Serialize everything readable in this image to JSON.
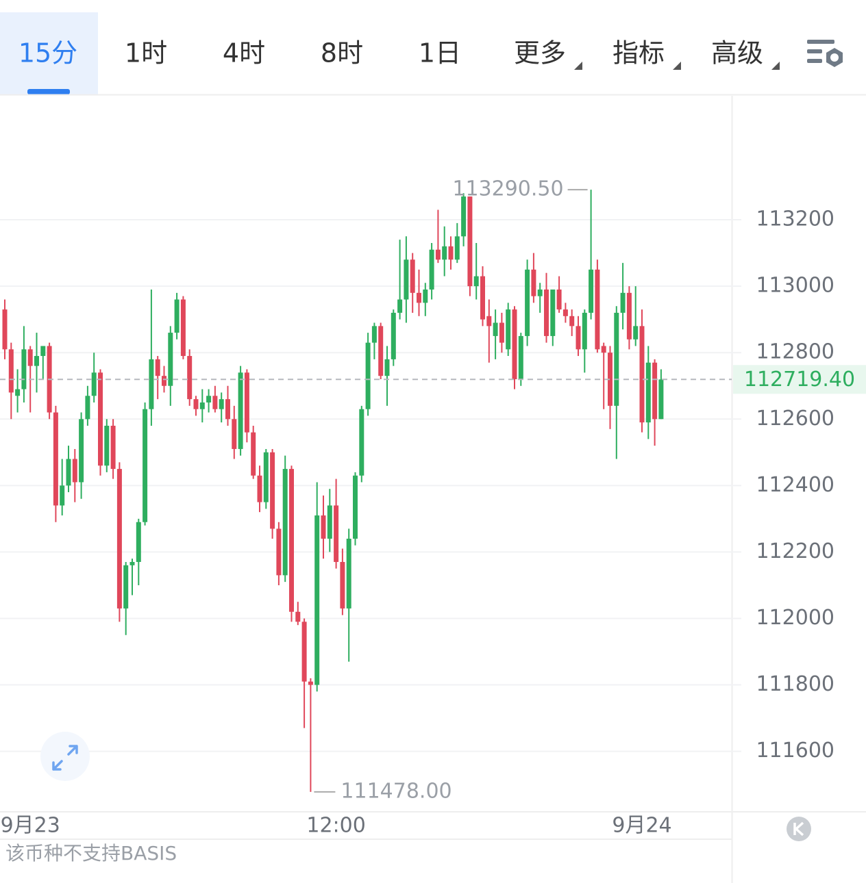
{
  "tabs": [
    "15分",
    "1时",
    "4时",
    "8时",
    "1日",
    "更多",
    "指标",
    "高级"
  ],
  "selected_tab": "15分",
  "footer_note": "该币种不支持BASIS",
  "chart_data": {
    "type": "candlestick",
    "up_color": "#2eae5f",
    "down_color": "#e0475a",
    "grid": true,
    "ylim": [
      111420,
      113573
    ],
    "yticks": [
      111600,
      111800,
      112000,
      112200,
      112400,
      112600,
      112800,
      113000,
      113200
    ],
    "last_price": {
      "value": 112719.4,
      "label": "112719.40"
    },
    "high_label": {
      "value": 113290.5,
      "label": "113290.50"
    },
    "low_label": {
      "value": 111478,
      "label": "111478.00"
    },
    "categories": [
      null,
      null,
      null,
      null,
      "9月23",
      null,
      null,
      null,
      null,
      null,
      null,
      null,
      null,
      null,
      null,
      null,
      null,
      null,
      null,
      null,
      null,
      null,
      null,
      null,
      null,
      null,
      null,
      null,
      null,
      null,
      null,
      null,
      null,
      null,
      null,
      null,
      null,
      null,
      null,
      null,
      null,
      null,
      null,
      null,
      null,
      null,
      null,
      null,
      null,
      null,
      null,
      null,
      "12:00",
      null,
      null,
      null,
      null,
      null,
      null,
      null,
      null,
      null,
      null,
      null,
      null,
      null,
      null,
      null,
      null,
      null,
      null,
      null,
      null,
      null,
      null,
      null,
      null,
      null,
      null,
      null,
      null,
      null,
      null,
      null,
      null,
      null,
      null,
      null,
      null,
      null,
      null,
      null,
      null,
      null,
      null,
      null,
      null,
      null,
      null,
      null,
      "9月24",
      null,
      null,
      null
    ],
    "open": [
      112930,
      112810,
      112670,
      112690,
      112810,
      112760,
      112790,
      112820,
      112620,
      112340,
      112400,
      112480,
      112410,
      112600,
      112670,
      112740,
      112460,
      112580,
      112450,
      112030,
      112160,
      112170,
      112290,
      112630,
      112780,
      112730,
      112700,
      112860,
      112960,
      112790,
      112660,
      112630,
      112650,
      112670,
      112630,
      112660,
      112600,
      112510,
      112740,
      112560,
      112430,
      112350,
      112500,
      112270,
      112130,
      112450,
      112020,
      111990,
      111810,
      111800,
      112310,
      112240,
      112340,
      112170,
      112030,
      112240,
      112430,
      112630,
      112830,
      112880,
      112730,
      112780,
      112920,
      112960,
      113080,
      112980,
      112950,
      112990,
      113110,
      113080,
      113120,
      113080,
      113150,
      113270,
      113000,
      113030,
      112910,
      112850,
      112890,
      112810,
      112930,
      112720,
      112850,
      113050,
      112970,
      112990,
      112850,
      112990,
      112930,
      112910,
      112880,
      112810,
      112920,
      113050,
      112820,
      112800,
      112640,
      112920,
      112980,
      112840,
      112880,
      112590,
      112770,
      112600
    ],
    "high": [
      112960,
      112830,
      112750,
      112880,
      112820,
      112860,
      112820,
      112830,
      112640,
      112480,
      112520,
      112510,
      112620,
      112700,
      112800,
      112750,
      112600,
      112600,
      112470,
      112170,
      112180,
      112300,
      112650,
      112990,
      112790,
      112760,
      112880,
      112980,
      112970,
      112810,
      112670,
      112690,
      112690,
      112700,
      112680,
      112700,
      112640,
      112760,
      112750,
      112580,
      112460,
      112510,
      112510,
      112290,
      112490,
      112460,
      112050,
      112000,
      111820,
      112410,
      112370,
      112390,
      112420,
      112210,
      112270,
      112440,
      112640,
      112860,
      112890,
      112890,
      112820,
      112930,
      113140,
      113150,
      113100,
      113050,
      113010,
      113130,
      113230,
      113180,
      113150,
      113190,
      113280,
      113270,
      113130,
      113060,
      112960,
      112930,
      112920,
      112950,
      112940,
      112860,
      113080,
      113100,
      113010,
      113040,
      112990,
      113030,
      112950,
      112930,
      112910,
      112930,
      113290.5,
      113080,
      112830,
      112820,
      112940,
      113070,
      113000,
      113000,
      112930,
      112820,
      112780,
      112750
    ],
    "low": [
      112780,
      112600,
      112620,
      112650,
      112620,
      112680,
      112720,
      112600,
      112290,
      112310,
      112380,
      112350,
      112360,
      112580,
      112650,
      112430,
      112440,
      112420,
      111990,
      111950,
      112070,
      112100,
      112280,
      112580,
      112660,
      112680,
      112640,
      112840,
      112780,
      112640,
      112610,
      112590,
      112620,
      112620,
      112590,
      112580,
      112480,
      112490,
      112530,
      112420,
      112320,
      112330,
      112240,
      112100,
      112110,
      111990,
      111980,
      111670,
      111478,
      111780,
      112180,
      112200,
      112150,
      112010,
      111870,
      112220,
      112410,
      112610,
      112780,
      112720,
      112640,
      112760,
      112900,
      112890,
      112920,
      112910,
      112910,
      112960,
      113070,
      113030,
      113050,
      113070,
      113120,
      112970,
      112960,
      112880,
      112770,
      112780,
      112800,
      112790,
      112690,
      112700,
      112820,
      112950,
      112920,
      112830,
      112820,
      112920,
      112890,
      112850,
      112790,
      112740,
      112900,
      112800,
      112630,
      112570,
      112480,
      112870,
      112810,
      112820,
      112560,
      112540,
      112520,
      112600
    ],
    "close": [
      112810,
      112680,
      112690,
      112810,
      112760,
      112790,
      112820,
      112620,
      112340,
      112400,
      112480,
      112410,
      112600,
      112670,
      112740,
      112460,
      112580,
      112450,
      112030,
      112160,
      112170,
      112290,
      112630,
      112780,
      112730,
      112700,
      112860,
      112960,
      112790,
      112660,
      112630,
      112650,
      112670,
      112630,
      112660,
      112600,
      112510,
      112740,
      112560,
      112430,
      112350,
      112500,
      112270,
      112130,
      112450,
      112020,
      111990,
      111810,
      111800,
      112310,
      112240,
      112340,
      112170,
      112030,
      112240,
      112430,
      112630,
      112830,
      112880,
      112730,
      112780,
      112920,
      112960,
      113080,
      112980,
      112950,
      112990,
      113110,
      113080,
      113120,
      113080,
      113150,
      113270,
      113000,
      113030,
      112900,
      112880,
      112890,
      112830,
      112930,
      112720,
      112850,
      113050,
      112970,
      112990,
      112850,
      112990,
      112930,
      112910,
      112880,
      112810,
      112920,
      113050,
      112810,
      112800,
      112640,
      112920,
      112980,
      112840,
      112880,
      112590,
      112770,
      112600,
      112719.4
    ]
  }
}
